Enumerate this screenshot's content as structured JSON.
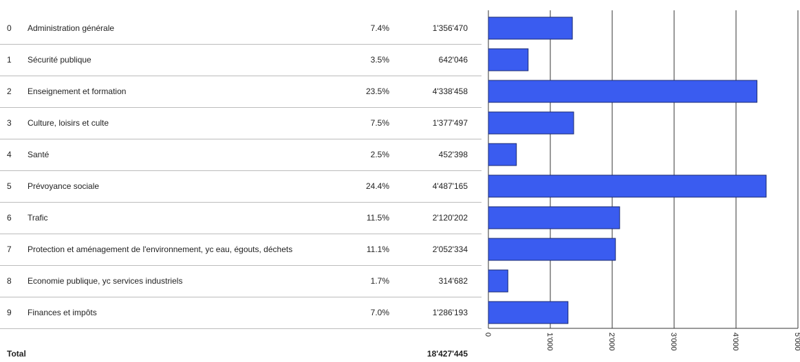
{
  "table": {
    "rows": [
      {
        "code": "0",
        "label": "Administration générale",
        "percent": "7.4%",
        "amount": "1'356'470"
      },
      {
        "code": "1",
        "label": "Sécurité publique",
        "percent": "3.5%",
        "amount": "642'046"
      },
      {
        "code": "2",
        "label": "Enseignement et formation",
        "percent": "23.5%",
        "amount": "4'338'458"
      },
      {
        "code": "3",
        "label": "Culture, loisirs et culte",
        "percent": "7.5%",
        "amount": "1'377'497"
      },
      {
        "code": "4",
        "label": "Santé",
        "percent": "2.5%",
        "amount": "452'398"
      },
      {
        "code": "5",
        "label": "Prévoyance sociale",
        "percent": "24.4%",
        "amount": "4'487'165"
      },
      {
        "code": "6",
        "label": "Trafic",
        "percent": "11.5%",
        "amount": "2'120'202"
      },
      {
        "code": "7",
        "label": "Protection et aménagement de l'environnement, yc eau, égouts, déchets",
        "percent": "11.1%",
        "amount": "2'052'334"
      },
      {
        "code": "8",
        "label": "Economie publique, yc services industriels",
        "percent": "1.7%",
        "amount": "314'682"
      },
      {
        "code": "9",
        "label": "Finances et impôts",
        "percent": "7.0%",
        "amount": "1'286'193"
      }
    ],
    "total": {
      "label": "Total",
      "amount": "18'427'445"
    }
  },
  "chart_data": {
    "type": "bar",
    "orientation": "horizontal",
    "color": "#3a5cf0",
    "values": [
      1356.47,
      642.046,
      4338.458,
      1377.497,
      452.398,
      4487.165,
      2120.202,
      2052.334,
      314.682,
      1286.193
    ],
    "xlim": [
      0,
      5000
    ],
    "xticks": [
      0,
      {
        "value": 1000,
        "label": "1'000"
      },
      {
        "value": 2000,
        "label": "2'000"
      },
      {
        "value": 3000,
        "label": "3'000"
      },
      {
        "value": 4000,
        "label": "4'000"
      },
      {
        "value": 5000,
        "label": "5'000"
      }
    ],
    "grid": true
  }
}
